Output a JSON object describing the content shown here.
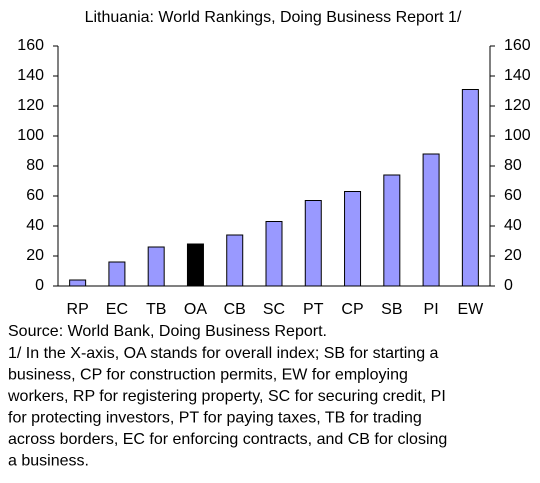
{
  "chart_data": {
    "type": "bar",
    "title": "Lithuania: World Rankings, Doing Business Report 1/",
    "categories": [
      "RP",
      "EC",
      "TB",
      "OA",
      "CB",
      "SC",
      "PT",
      "CP",
      "SB",
      "PI",
      "EW"
    ],
    "values": [
      4,
      16,
      26,
      28,
      34,
      43,
      57,
      63,
      74,
      88,
      131
    ],
    "colors": [
      "#9999ff",
      "#9999ff",
      "#9999ff",
      "#000000",
      "#9999ff",
      "#9999ff",
      "#9999ff",
      "#9999ff",
      "#9999ff",
      "#9999ff",
      "#9999ff"
    ],
    "ylim": [
      0,
      160
    ],
    "yticks": [
      0,
      20,
      40,
      60,
      80,
      100,
      120,
      140,
      160
    ],
    "y2lim": [
      0,
      160
    ],
    "y2ticks": [
      0,
      20,
      40,
      60,
      80,
      100,
      120,
      140,
      160
    ],
    "grid": false,
    "source": "Source: World Bank, Doing Business Report.",
    "footnote": [
      "1/ In the X-axis, OA stands for overall index; SB for starting a",
      "business, CP for construction permits, EW for employing",
      "workers, RP for registering property, SC for securing credit, PI",
      "for protecting investors, PT for paying taxes, TB for trading",
      "across borders, EC for enforcing contracts, and CB for closing",
      "a business."
    ]
  }
}
